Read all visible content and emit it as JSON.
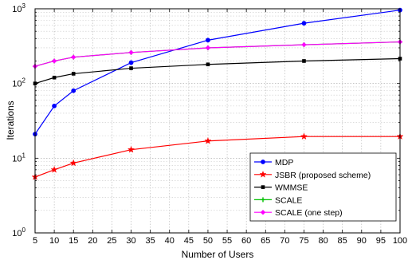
{
  "chart_data": {
    "type": "line",
    "xlabel": "Number of Users",
    "ylabel": "Iterations",
    "xlim": [
      5,
      100
    ],
    "ylim": [
      1,
      1000
    ],
    "yscale": "log",
    "grid": true,
    "legend_position": "bottom-right",
    "x": [
      5,
      10,
      15,
      30,
      50,
      75,
      100
    ],
    "x_ticks": [
      5,
      10,
      15,
      20,
      25,
      30,
      35,
      40,
      45,
      50,
      55,
      60,
      65,
      70,
      75,
      80,
      85,
      90,
      95,
      100
    ],
    "y_ticks": [
      {
        "base": "10",
        "exp": "0",
        "value": 1
      },
      {
        "base": "10",
        "exp": "1",
        "value": 10
      },
      {
        "base": "10",
        "exp": "2",
        "value": 100
      },
      {
        "base": "10",
        "exp": "3",
        "value": 1000
      }
    ],
    "series": [
      {
        "name": "MDP",
        "color": "#0000ff",
        "marker": "dot",
        "values": [
          21,
          50,
          80,
          190,
          380,
          640,
          960
        ]
      },
      {
        "name": "JSBR (proposed scheme)",
        "color": "#ff0000",
        "marker": "star",
        "values": [
          5.6,
          7,
          8.6,
          13,
          17,
          19.5,
          19.5
        ]
      },
      {
        "name": "WMMSE",
        "color": "#000000",
        "marker": "square",
        "values": [
          100,
          120,
          135,
          160,
          180,
          200,
          215
        ]
      },
      {
        "name": "SCALE",
        "color": "#00c000",
        "marker": "plus",
        "values": [
          170,
          200,
          225,
          260,
          300,
          330,
          360
        ]
      },
      {
        "name": "SCALE (one step)",
        "color": "#ff00ff",
        "marker": "diamond",
        "values": [
          170,
          200,
          225,
          260,
          300,
          330,
          360
        ]
      }
    ]
  }
}
